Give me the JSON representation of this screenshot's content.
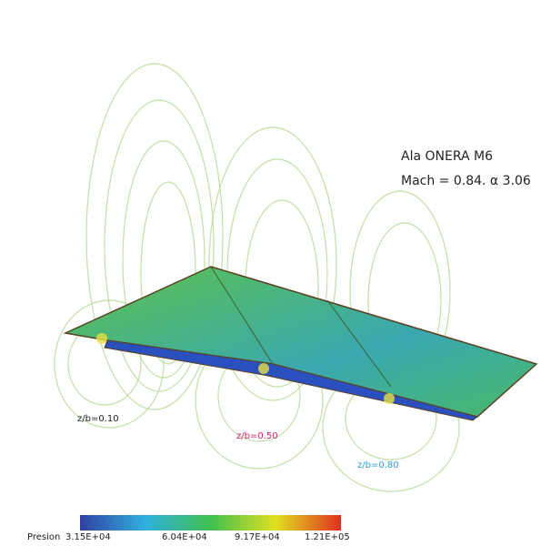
{
  "annotation": {
    "title": "Ala ONERA M6",
    "conditions": "Mach = 0.84. α 3.06"
  },
  "sections": [
    "z/b=0.10",
    "z/b=0.50",
    "z/b=0.80"
  ],
  "colorbar": {
    "label": "Presion",
    "ticks": [
      "3.15E+04",
      "6.04E+04",
      "9.17E+04",
      "1.21E+05"
    ]
  }
}
